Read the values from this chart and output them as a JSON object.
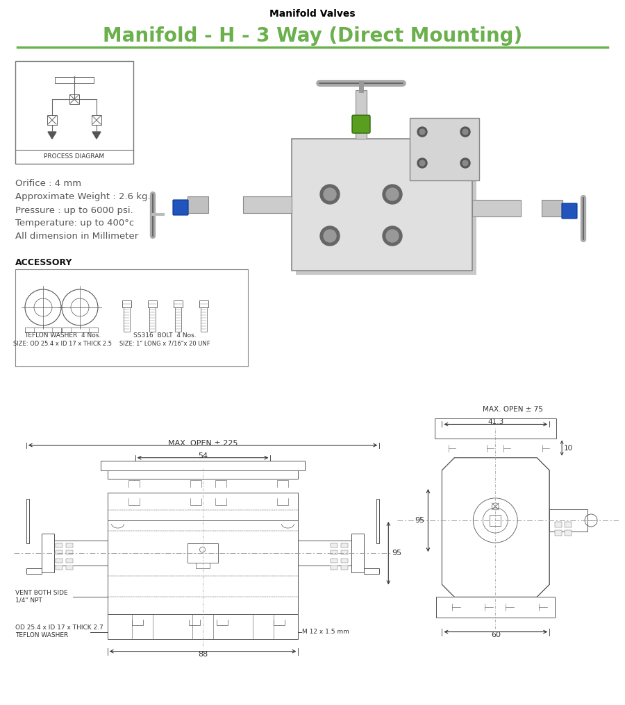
{
  "title_small": "Manifold Valves",
  "title_main": "Manifold - H - 3 Way (Direct Mounting)",
  "title_color": "#6ab04c",
  "title_small_color": "#000000",
  "line_color": "#6ab04c",
  "specs": [
    "Orifice : 4 mm",
    "Approximate Weight : 2.6 kg.",
    "Pressure : up to 6000 psi.",
    "Temperature: up to 400°c",
    "All dimension in Millimeter"
  ],
  "accessory_title": "ACCESSORY",
  "washer_label1": "TEFLON WASHER  4 Nos.",
  "washer_label2": "SIZE: OD 25.4 x ID 17 x THICK 2.5",
  "bolt_label1": "SS316  BOLT  4 Nos.",
  "bolt_label2": "SIZE: 1\" LONG x 7/16\"x 20 UNF",
  "process_diagram_label": "PROCESS DIAGRAM",
  "bg_color": "#ffffff",
  "draw_color": "#444444",
  "spec_color": "#555555",
  "text_color": "#333333"
}
